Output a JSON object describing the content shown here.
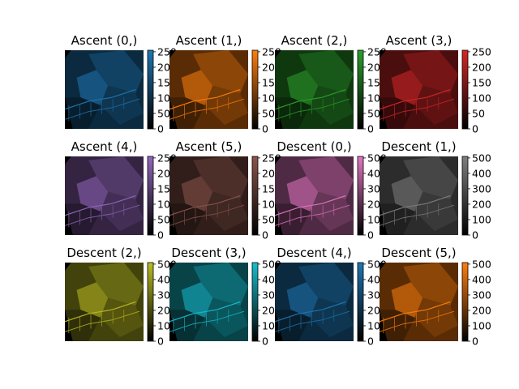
{
  "chart_data": {
    "type": "image-grid",
    "rows": 3,
    "cols": 4,
    "panels": [
      {
        "title": "Ascent (0,)",
        "cmap_color": "#1f77b4",
        "colorbar_ticks": [
          "0",
          "50",
          "100",
          "150",
          "200",
          "250"
        ],
        "vmax": 255
      },
      {
        "title": "Ascent (1,)",
        "cmap_color": "#ff7f0e",
        "colorbar_ticks": [
          "0",
          "50",
          "100",
          "150",
          "200",
          "250"
        ],
        "vmax": 255
      },
      {
        "title": "Ascent (2,)",
        "cmap_color": "#2ca02c",
        "colorbar_ticks": [
          "0",
          "50",
          "100",
          "150",
          "200",
          "250"
        ],
        "vmax": 255
      },
      {
        "title": "Ascent (3,)",
        "cmap_color": "#d62728",
        "colorbar_ticks": [
          "0",
          "50",
          "100",
          "150",
          "200",
          "250"
        ],
        "vmax": 255
      },
      {
        "title": "Ascent (4,)",
        "cmap_color": "#9467bd",
        "colorbar_ticks": [
          "0",
          "50",
          "100",
          "150",
          "200",
          "250"
        ],
        "vmax": 255
      },
      {
        "title": "Ascent (5,)",
        "cmap_color": "#8c564b",
        "colorbar_ticks": [
          "0",
          "50",
          "100",
          "150",
          "200",
          "250"
        ],
        "vmax": 255
      },
      {
        "title": "Descent (0,)",
        "cmap_color": "#e377c2",
        "colorbar_ticks": [
          "0",
          "100",
          "200",
          "300",
          "400",
          "500"
        ],
        "vmax": 510
      },
      {
        "title": "Descent (1,)",
        "cmap_color": "#7f7f7f",
        "colorbar_ticks": [
          "0",
          "100",
          "200",
          "300",
          "400",
          "500"
        ],
        "vmax": 510
      },
      {
        "title": "Descent (2,)",
        "cmap_color": "#bcbd22",
        "colorbar_ticks": [
          "0",
          "100",
          "200",
          "300",
          "400",
          "500"
        ],
        "vmax": 510
      },
      {
        "title": "Descent (3,)",
        "cmap_color": "#17becf",
        "colorbar_ticks": [
          "0",
          "100",
          "200",
          "300",
          "400",
          "500"
        ],
        "vmax": 510
      },
      {
        "title": "Descent (4,)",
        "cmap_color": "#1f77b4",
        "colorbar_ticks": [
          "0",
          "100",
          "200",
          "300",
          "400",
          "500"
        ],
        "vmax": 510
      },
      {
        "title": "Descent (5,)",
        "cmap_color": "#ff7f0e",
        "colorbar_ticks": [
          "0",
          "100",
          "200",
          "300",
          "400",
          "500"
        ],
        "vmax": 510
      }
    ]
  }
}
